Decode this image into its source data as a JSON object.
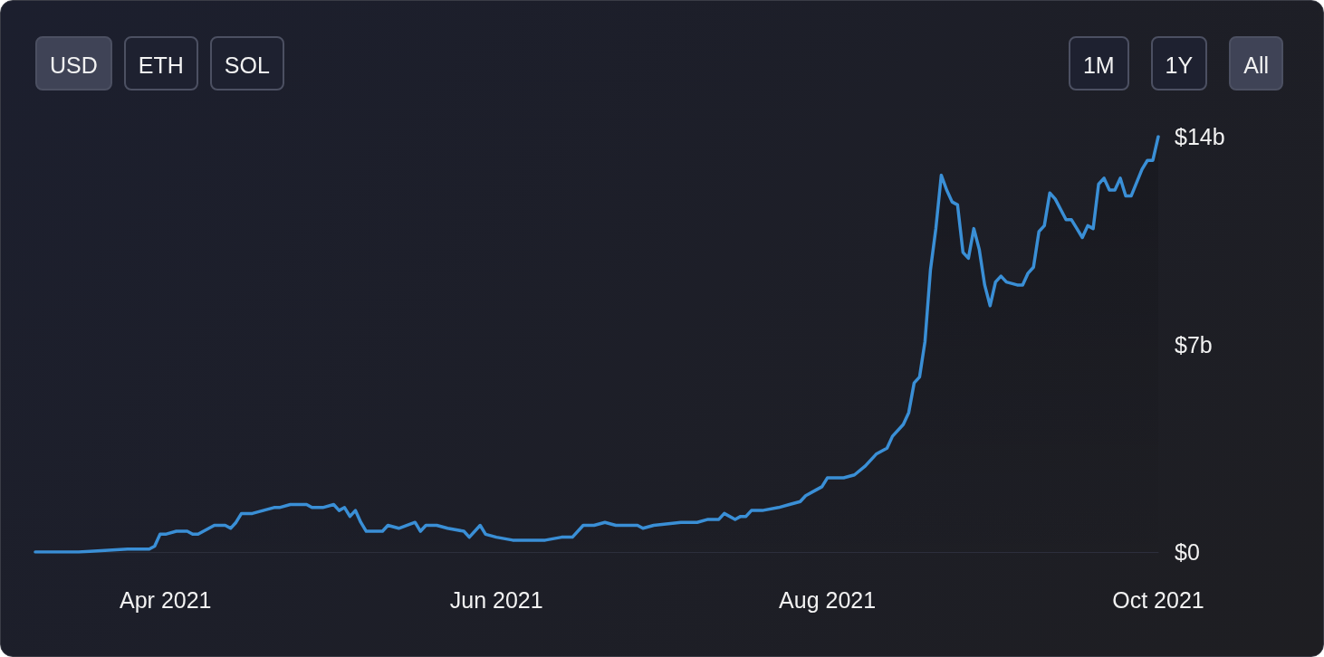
{
  "chart_data": {
    "type": "area",
    "annotations": [
      "USD",
      "ETH",
      "SOL",
      "1M",
      "1Y",
      "All"
    ],
    "x": [
      "2021-03-08",
      "2021-03-16",
      "2021-03-25",
      "2021-03-29",
      "2021-03-30",
      "2021-03-31",
      "2021-04-01",
      "2021-04-03",
      "2021-04-05",
      "2021-04-06",
      "2021-04-07",
      "2021-04-08",
      "2021-04-09",
      "2021-04-10",
      "2021-04-12",
      "2021-04-13",
      "2021-04-14",
      "2021-04-15",
      "2021-04-17",
      "2021-04-19",
      "2021-04-21",
      "2021-04-22",
      "2021-04-24",
      "2021-04-27",
      "2021-04-28",
      "2021-04-30",
      "2021-05-02",
      "2021-05-03",
      "2021-05-04",
      "2021-05-05",
      "2021-05-06",
      "2021-05-07",
      "2021-05-08",
      "2021-05-10",
      "2021-05-11",
      "2021-05-12",
      "2021-05-14",
      "2021-05-17",
      "2021-05-18",
      "2021-05-19",
      "2021-05-21",
      "2021-05-23",
      "2021-05-26",
      "2021-05-27",
      "2021-05-29",
      "2021-05-30",
      "2021-06-01",
      "2021-06-04",
      "2021-06-07",
      "2021-06-10",
      "2021-06-13",
      "2021-06-15",
      "2021-06-17",
      "2021-06-19",
      "2021-06-21",
      "2021-06-23",
      "2021-06-27",
      "2021-06-28",
      "2021-06-30",
      "2021-07-05",
      "2021-07-08",
      "2021-07-10",
      "2021-07-12",
      "2021-07-13",
      "2021-07-15",
      "2021-07-16",
      "2021-07-17",
      "2021-07-18",
      "2021-07-20",
      "2021-07-23",
      "2021-07-25",
      "2021-07-27",
      "2021-07-28",
      "2021-07-30",
      "2021-07-31",
      "2021-08-01",
      "2021-08-04",
      "2021-08-06",
      "2021-08-08",
      "2021-08-09",
      "2021-08-10",
      "2021-08-12",
      "2021-08-13",
      "2021-08-15",
      "2021-08-16",
      "2021-08-17",
      "2021-08-18",
      "2021-08-19",
      "2021-08-20",
      "2021-08-21",
      "2021-08-22",
      "2021-08-23",
      "2021-08-24",
      "2021-08-25",
      "2021-08-26",
      "2021-08-27",
      "2021-08-28",
      "2021-08-29",
      "2021-08-30",
      "2021-08-31",
      "2021-09-01",
      "2021-09-02",
      "2021-09-03",
      "2021-09-05",
      "2021-09-06",
      "2021-09-07",
      "2021-09-08",
      "2021-09-09",
      "2021-09-10",
      "2021-09-11",
      "2021-09-12",
      "2021-09-14",
      "2021-09-15",
      "2021-09-16",
      "2021-09-17",
      "2021-09-18",
      "2021-09-19",
      "2021-09-20",
      "2021-09-21",
      "2021-09-22",
      "2021-09-23",
      "2021-09-24",
      "2021-09-25",
      "2021-09-26",
      "2021-09-28",
      "2021-09-29",
      "2021-09-30",
      "2021-10-01"
    ],
    "series": [
      {
        "color": "#3a8fd6",
        "values": [
          0.0,
          0.0,
          0.1,
          0.1,
          0.2,
          0.6,
          0.6,
          0.7,
          0.7,
          0.6,
          0.6,
          0.7,
          0.8,
          0.9,
          0.9,
          0.8,
          1.0,
          1.3,
          1.3,
          1.4,
          1.5,
          1.5,
          1.6,
          1.6,
          1.5,
          1.5,
          1.6,
          1.4,
          1.5,
          1.2,
          1.4,
          1.0,
          0.7,
          0.7,
          0.7,
          0.9,
          0.8,
          1.0,
          0.7,
          0.9,
          0.9,
          0.8,
          0.7,
          0.5,
          0.9,
          0.6,
          0.5,
          0.4,
          0.4,
          0.4,
          0.5,
          0.5,
          0.9,
          0.9,
          1.0,
          0.9,
          0.9,
          0.8,
          0.9,
          1.0,
          1.0,
          1.1,
          1.1,
          1.3,
          1.1,
          1.2,
          1.2,
          1.4,
          1.4,
          1.5,
          1.6,
          1.7,
          1.9,
          2.1,
          2.2,
          2.5,
          2.5,
          2.6,
          2.9,
          3.1,
          3.3,
          3.5,
          3.9,
          4.3,
          4.7,
          5.7,
          5.9,
          7.1,
          9.5,
          10.9,
          12.7,
          12.2,
          11.8,
          11.7,
          10.1,
          9.9,
          10.9,
          10.2,
          9.0,
          8.3,
          9.1,
          9.3,
          9.1,
          9.0,
          9.0,
          9.4,
          9.6,
          10.8,
          11.0,
          12.1,
          11.9,
          11.2,
          11.2,
          10.9,
          10.6,
          11.0,
          10.9,
          12.4,
          12.6,
          12.2,
          12.2,
          12.6,
          12.0,
          12.0,
          12.9,
          13.2,
          13.2,
          14.0
        ]
      }
    ],
    "xticks": [
      {
        "value": "2021-04-01",
        "label": "Apr 2021"
      },
      {
        "value": "2021-06-01",
        "label": "Jun 2021"
      },
      {
        "value": "2021-08-01",
        "label": "Aug 2021"
      },
      {
        "value": "2021-10-01",
        "label": "Oct 2021"
      }
    ],
    "xlim": [
      "2021-03-08",
      "2021-10-01"
    ],
    "ylim": [
      0,
      14
    ],
    "yticks": [
      {
        "value": 0,
        "label": "$0"
      },
      {
        "value": 7,
        "label": "$7b"
      },
      {
        "value": 14,
        "label": "$14b"
      }
    ],
    "grid": false,
    "marker": "none",
    "line_style": "solid"
  }
}
